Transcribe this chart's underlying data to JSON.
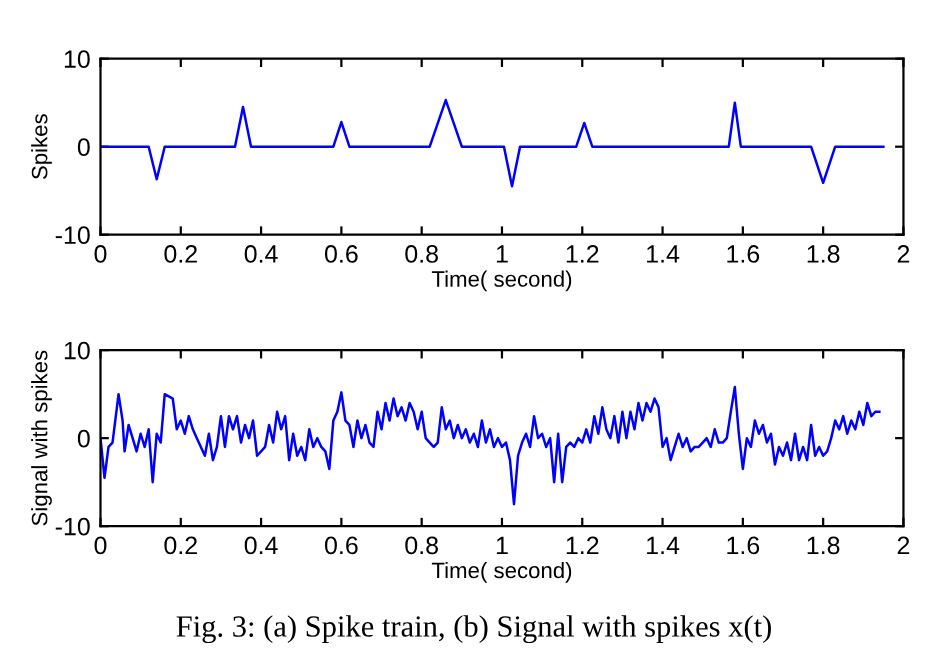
{
  "chart_data": [
    {
      "type": "line",
      "ylabel": "Spikes",
      "xlabel": "Time( second)",
      "xlim": [
        0,
        2
      ],
      "ylim": [
        -10,
        10
      ],
      "xticks": [
        0,
        0.2,
        0.4,
        0.6,
        0.8,
        1,
        1.2,
        1.4,
        1.6,
        1.8,
        2
      ],
      "yticks": [
        -10,
        0,
        10
      ],
      "grid": false,
      "legend": false,
      "series": [
        {
          "color": "#0000ff",
          "x": [
            0,
            0.12,
            0.14,
            0.16,
            0.335,
            0.355,
            0.375,
            0.58,
            0.6,
            0.62,
            0.82,
            0.86,
            0.9,
            1.005,
            1.025,
            1.045,
            1.185,
            1.205,
            1.225,
            1.565,
            1.58,
            1.595,
            1.77,
            1.8,
            1.83,
            1.95
          ],
          "values": [
            0,
            0,
            -3.7,
            0,
            0,
            4.5,
            0,
            0,
            2.8,
            0,
            0,
            5.3,
            0,
            0,
            -4.5,
            0,
            0,
            2.7,
            0,
            0,
            5,
            0,
            0,
            -4.1,
            0,
            0
          ]
        }
      ]
    },
    {
      "type": "line",
      "ylabel": "Signal with spikes",
      "xlabel": "Time( second)",
      "xlim": [
        0,
        2
      ],
      "ylim": [
        -10,
        10
      ],
      "xticks": [
        0,
        0.2,
        0.4,
        0.6,
        0.8,
        1,
        1.2,
        1.4,
        1.6,
        1.8,
        2
      ],
      "yticks": [
        -10,
        0,
        10
      ],
      "grid": false,
      "legend": false,
      "annotations": [
        "Fig. 3: (a) Spike train, (b) Signal with spikes x(t)"
      ],
      "series": [
        {
          "color": "#0000ff",
          "x": [
            0,
            0.01,
            0.02,
            0.03,
            0.045,
            0.055,
            0.06,
            0.07,
            0.08,
            0.09,
            0.1,
            0.11,
            0.12,
            0.13,
            0.14,
            0.15,
            0.16,
            0.18,
            0.19,
            0.2,
            0.21,
            0.22,
            0.23,
            0.24,
            0.25,
            0.26,
            0.27,
            0.28,
            0.29,
            0.3,
            0.31,
            0.32,
            0.33,
            0.34,
            0.35,
            0.36,
            0.37,
            0.38,
            0.39,
            0.4,
            0.41,
            0.42,
            0.43,
            0.44,
            0.45,
            0.46,
            0.47,
            0.48,
            0.49,
            0.5,
            0.51,
            0.52,
            0.53,
            0.54,
            0.55,
            0.56,
            0.57,
            0.58,
            0.59,
            0.6,
            0.61,
            0.62,
            0.63,
            0.64,
            0.65,
            0.66,
            0.67,
            0.68,
            0.69,
            0.7,
            0.71,
            0.72,
            0.73,
            0.74,
            0.75,
            0.76,
            0.77,
            0.78,
            0.79,
            0.8,
            0.81,
            0.82,
            0.83,
            0.84,
            0.85,
            0.86,
            0.87,
            0.88,
            0.89,
            0.9,
            0.91,
            0.92,
            0.93,
            0.94,
            0.95,
            0.96,
            0.97,
            0.98,
            0.99,
            1.0,
            1.01,
            1.02,
            1.03,
            1.04,
            1.05,
            1.06,
            1.07,
            1.08,
            1.09,
            1.1,
            1.11,
            1.12,
            1.13,
            1.14,
            1.15,
            1.16,
            1.17,
            1.18,
            1.19,
            1.2,
            1.21,
            1.22,
            1.23,
            1.24,
            1.25,
            1.26,
            1.27,
            1.28,
            1.29,
            1.3,
            1.31,
            1.32,
            1.33,
            1.34,
            1.35,
            1.36,
            1.37,
            1.38,
            1.39,
            1.4,
            1.41,
            1.42,
            1.43,
            1.44,
            1.45,
            1.46,
            1.47,
            1.48,
            1.49,
            1.5,
            1.51,
            1.52,
            1.53,
            1.54,
            1.55,
            1.56,
            1.57,
            1.58,
            1.59,
            1.6,
            1.61,
            1.62,
            1.63,
            1.64,
            1.65,
            1.66,
            1.67,
            1.68,
            1.69,
            1.7,
            1.71,
            1.72,
            1.73,
            1.74,
            1.75,
            1.76,
            1.77,
            1.78,
            1.79,
            1.8,
            1.81,
            1.82,
            1.83,
            1.84,
            1.85,
            1.86,
            1.87,
            1.88,
            1.89,
            1.9,
            1.91,
            1.92,
            1.93,
            1.94
          ],
          "values": [
            0,
            -4.5,
            -1,
            -0.5,
            5,
            2,
            -1.5,
            1.5,
            0,
            -1.5,
            0.5,
            -1,
            1,
            -5,
            0.5,
            -0.5,
            5,
            4.5,
            1,
            2,
            0.5,
            2.5,
            1,
            0,
            -1,
            -2,
            0.5,
            -2.5,
            -1,
            2.5,
            -1,
            2.5,
            1,
            2.5,
            -0.5,
            1.5,
            0,
            2,
            -2,
            -1.5,
            -1,
            1.5,
            -0.5,
            3,
            1,
            2.5,
            -2.5,
            0.5,
            -2,
            -1,
            -2.5,
            1,
            -1,
            0,
            -1,
            -1.5,
            -3.5,
            2,
            3,
            5.2,
            2,
            1.5,
            -1,
            2,
            0,
            1.5,
            -0.5,
            -1,
            3,
            1,
            4,
            2,
            4.5,
            2.5,
            3.5,
            2,
            4,
            3,
            1,
            3,
            0,
            -0.5,
            -1,
            -0.5,
            3.5,
            1,
            2,
            0,
            1.5,
            0,
            1,
            -0.5,
            0.5,
            -1,
            2,
            -0.5,
            1,
            -1,
            0,
            -1,
            -0.5,
            -2.5,
            -7.5,
            -2,
            -0.5,
            0.5,
            -1,
            2.5,
            0,
            0.5,
            -1,
            0,
            -5,
            0.5,
            -5,
            -1,
            -0.5,
            -1,
            0,
            -0.5,
            1,
            -0.5,
            2.5,
            0.5,
            3.5,
            1,
            0,
            2.5,
            -0.5,
            3,
            0,
            3,
            1,
            4,
            2,
            4,
            3,
            4.5,
            3.5,
            -1,
            0,
            -2.5,
            -1,
            0.5,
            -1,
            0,
            -1.5,
            -1,
            -1,
            -0.5,
            0,
            -1,
            1,
            -0.5,
            -0.5,
            0,
            3,
            5.8,
            0.5,
            -3.5,
            0,
            -1,
            2,
            0.5,
            1.5,
            -0.5,
            0.5,
            -3,
            -1,
            -2,
            -0.5,
            -2.5,
            0.5,
            -2.5,
            -1,
            -2.5,
            1.5,
            -2,
            -1,
            -2,
            -1.5,
            0,
            2,
            1,
            2.5,
            0.5,
            2,
            1,
            3,
            1.5,
            4,
            2.5,
            3,
            3
          ]
        }
      ]
    }
  ]
}
